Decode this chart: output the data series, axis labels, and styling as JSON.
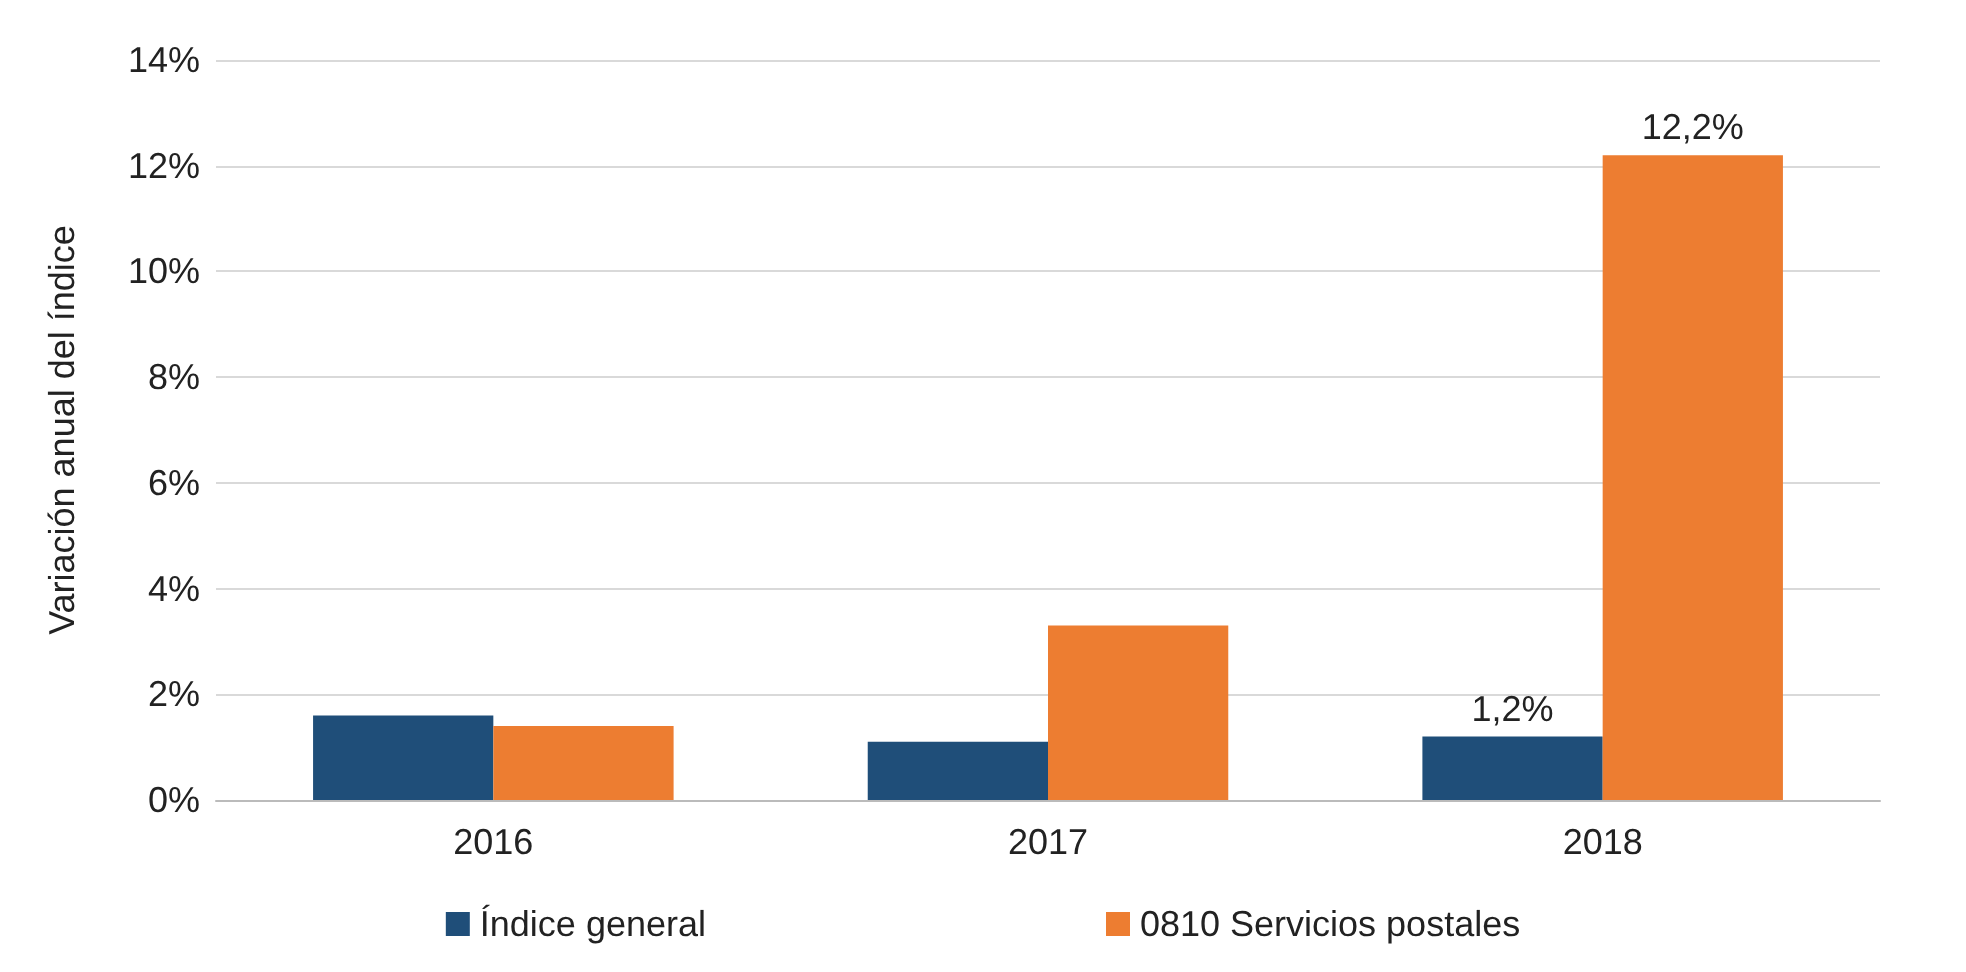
{
  "chart_data": {
    "type": "bar",
    "ylabel": "Variación anual del índice",
    "categories": [
      "2016",
      "2017",
      "2018"
    ],
    "series": [
      {
        "name": "Índice general",
        "color": "#1f4e79",
        "values": [
          1.6,
          1.1,
          1.2
        ],
        "value_labels": [
          null,
          null,
          "1,2%"
        ]
      },
      {
        "name": "0810 Servicios postales",
        "color": "#ed7d31",
        "values": [
          1.4,
          3.3,
          12.2
        ],
        "value_labels": [
          null,
          null,
          "12,2%"
        ]
      }
    ],
    "ylim": [
      0,
      14
    ],
    "yticks": [
      {
        "value": 0,
        "label": "0%"
      },
      {
        "value": 2,
        "label": "2%"
      },
      {
        "value": 4,
        "label": "4%"
      },
      {
        "value": 6,
        "label": "6%"
      },
      {
        "value": 8,
        "label": "8%"
      },
      {
        "value": 10,
        "label": "10%"
      },
      {
        "value": 12,
        "label": "12%"
      },
      {
        "value": 14,
        "label": "14%"
      }
    ],
    "grid": "y",
    "legend": "bottom"
  }
}
